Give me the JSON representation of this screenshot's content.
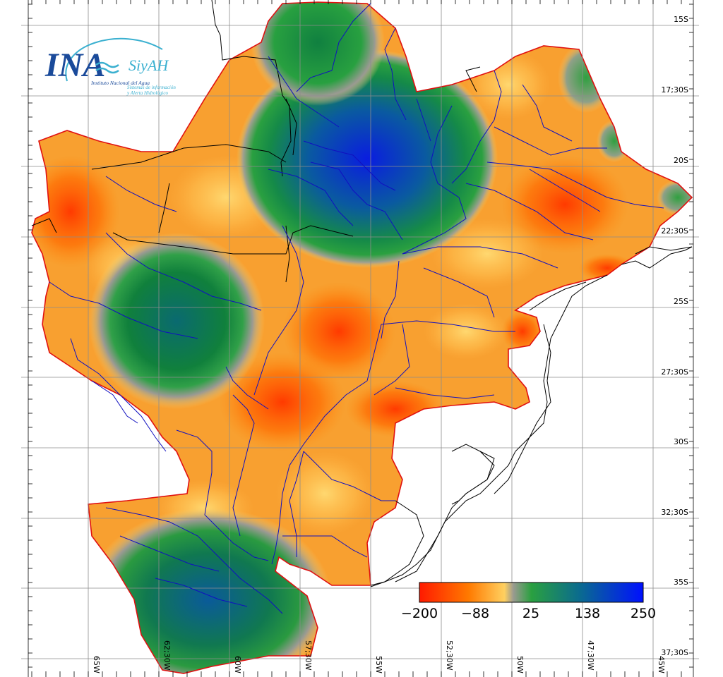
{
  "logo": {
    "name": "INA",
    "system": "SiyAH",
    "institute": "Instituto Nacional del Agua",
    "subtitle_line1": "Sistemas de información",
    "subtitle_line2": "y Alerta Hidrológico"
  },
  "grid": {
    "lat_labels": [
      "15S",
      "17;30S",
      "20S",
      "22;30S",
      "25S",
      "27;30S",
      "30S",
      "32;30S",
      "35S",
      "37;30S"
    ],
    "lon_labels": [
      "65W",
      "62;30W",
      "60W",
      "57;30W",
      "55W",
      "52;30W",
      "50W",
      "47;30W",
      "45W"
    ]
  },
  "colorbar": {
    "ticks": [
      "−200",
      "−88",
      "25",
      "138",
      "250"
    ],
    "min": -200,
    "max": 250,
    "colors": [
      "#ff1a00",
      "#ff7a00",
      "#ffd060",
      "#2aa040",
      "#0a6a90",
      "#0010ff"
    ]
  },
  "colors": {
    "border": "#e01010",
    "rivers": "#1010c0",
    "political": "#000000",
    "grid": "#8c8c8c",
    "logo_blue": "#1a4a9a",
    "logo_cyan": "#3ab0d0"
  }
}
